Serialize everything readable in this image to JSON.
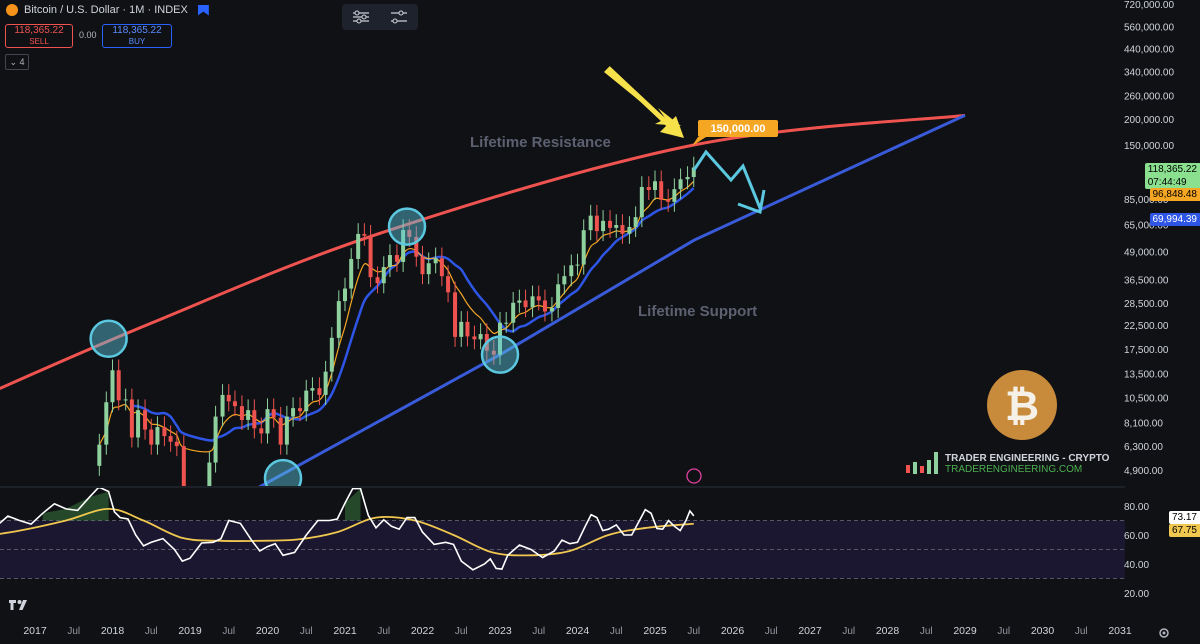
{
  "header": {
    "symbol": "Bitcoin / U.S. Dollar · 1M · INDEX",
    "sell_price": "118,365.22",
    "sell_label": "SELL",
    "spread": "0.00",
    "buy_price": "118,365.22",
    "buy_label": "BUY",
    "indicators_count": "4"
  },
  "colors": {
    "up": "#26a69a",
    "up_candle": "#8fd19e",
    "down": "#ef5350",
    "resistance": "#ef5350",
    "support": "#3a5bd9",
    "ema_orange": "#f5a623",
    "sma_blue": "#2e55e6",
    "circle": "#5bc8e0",
    "rsi_line": "#ffffff",
    "rsi_ma": "#f0c850",
    "arrow_yellow": "#f7e14b",
    "arrow_blue": "#5bc8e0"
  },
  "annotations": {
    "resistance_label": "Lifetime Resistance",
    "support_label": "Lifetime Support",
    "target_label": "150,000.00",
    "brand_name": "TRADER ENGINEERING - CRYPTO",
    "brand_url": "TRADERENGINEERING.COM"
  },
  "price_badges": {
    "last_price": "118,365.22",
    "countdown": "07:44:49",
    "ema": "96,848.48",
    "sma": "69,994.39",
    "rsi": "73.17",
    "rsi_ma": "67.75"
  },
  "chart_data": [
    {
      "type": "candlestick",
      "title": "Bitcoin / U.S. Dollar · 1M · INDEX",
      "y_scale": "log",
      "y_ticks": [
        "720,000.00",
        "560,000.00",
        "440,000.00",
        "340,000.00",
        "260,000.00",
        "200,000.00",
        "150,000.00",
        "85,000.00",
        "65,000.00",
        "49,000.00",
        "36,500.00",
        "28,500.00",
        "22,500.00",
        "17,500.00",
        "13,500.00",
        "10,500.00",
        "8,100.00",
        "6,300.00",
        "4,900.00"
      ],
      "y_tick_values": [
        720000,
        560000,
        440000,
        340000,
        260000,
        200000,
        150000,
        85000,
        65000,
        49000,
        36500,
        28500,
        22500,
        17500,
        13500,
        10500,
        8100,
        6300,
        4900
      ],
      "x_ticks": [
        "2017",
        "Jul",
        "2018",
        "Jul",
        "2019",
        "Jul",
        "2020",
        "Jul",
        "2021",
        "Jul",
        "2022",
        "Jul",
        "2023",
        "Jul",
        "2024",
        "Jul",
        "2025",
        "Jul",
        "2026",
        "Jul",
        "2027",
        "Jul",
        "2028",
        "Jul",
        "2029",
        "Jul",
        "2030",
        "Jul",
        "2031"
      ],
      "x_tick_dates": [
        2017.0,
        2017.5,
        2018.0,
        2018.5,
        2019.0,
        2019.5,
        2020.0,
        2020.5,
        2021.0,
        2021.5,
        2022.0,
        2022.5,
        2023.0,
        2023.5,
        2024.0,
        2024.5,
        2025.0,
        2025.5,
        2026.0,
        2026.5,
        2027.0,
        2027.5,
        2028.0,
        2028.5,
        2029.0,
        2029.5,
        2030.0,
        2030.5,
        2031.0
      ],
      "candles_close": [
        [
          2017.83,
          6400
        ],
        [
          2017.92,
          10000
        ],
        [
          2018.0,
          14000
        ],
        [
          2018.08,
          10200
        ],
        [
          2018.17,
          10300
        ],
        [
          2018.25,
          6900
        ],
        [
          2018.33,
          9200
        ],
        [
          2018.42,
          7500
        ],
        [
          2018.5,
          6400
        ],
        [
          2018.58,
          7700
        ],
        [
          2018.67,
          7000
        ],
        [
          2018.75,
          6600
        ],
        [
          2018.83,
          6300
        ],
        [
          2018.92,
          4000
        ],
        [
          2019.25,
          5300
        ],
        [
          2019.33,
          8600
        ],
        [
          2019.42,
          10800
        ],
        [
          2019.5,
          10100
        ],
        [
          2019.58,
          9600
        ],
        [
          2019.67,
          8300
        ],
        [
          2019.75,
          9200
        ],
        [
          2019.83,
          7600
        ],
        [
          2019.92,
          7200
        ],
        [
          2020.0,
          9300
        ],
        [
          2020.08,
          8500
        ],
        [
          2020.17,
          6400
        ],
        [
          2020.25,
          8600
        ],
        [
          2020.33,
          9400
        ],
        [
          2020.42,
          9100
        ],
        [
          2020.5,
          11300
        ],
        [
          2020.58,
          11600
        ],
        [
          2020.67,
          10800
        ],
        [
          2020.75,
          13800
        ],
        [
          2020.83,
          19700
        ],
        [
          2020.92,
          29000
        ],
        [
          2021.0,
          33100
        ],
        [
          2021.08,
          45200
        ],
        [
          2021.17,
          58800
        ],
        [
          2021.25,
          57700
        ],
        [
          2021.33,
          37300
        ],
        [
          2021.42,
          35000
        ],
        [
          2021.5,
          41500
        ],
        [
          2021.58,
          47100
        ],
        [
          2021.67,
          43800
        ],
        [
          2021.75,
          61300
        ],
        [
          2021.83,
          57000
        ],
        [
          2021.92,
          46300
        ],
        [
          2022.0,
          38500
        ],
        [
          2022.08,
          43200
        ],
        [
          2022.17,
          45500
        ],
        [
          2022.25,
          37700
        ],
        [
          2022.33,
          31800
        ],
        [
          2022.42,
          19900
        ],
        [
          2022.5,
          23300
        ],
        [
          2022.58,
          20000
        ],
        [
          2022.67,
          19400
        ],
        [
          2022.75,
          20500
        ],
        [
          2022.83,
          17200
        ],
        [
          2022.92,
          16500
        ],
        [
          2023.0,
          23100
        ],
        [
          2023.08,
          23100
        ],
        [
          2023.17,
          28500
        ],
        [
          2023.25,
          29200
        ],
        [
          2023.33,
          27200
        ],
        [
          2023.42,
          30500
        ],
        [
          2023.5,
          29200
        ],
        [
          2023.58,
          26000
        ],
        [
          2023.67,
          27000
        ],
        [
          2023.75,
          34600
        ],
        [
          2023.83,
          37700
        ],
        [
          2023.92,
          42300
        ],
        [
          2024.0,
          42600
        ],
        [
          2024.08,
          61200
        ],
        [
          2024.17,
          71300
        ],
        [
          2024.25,
          60600
        ],
        [
          2024.33,
          67500
        ],
        [
          2024.42,
          62700
        ],
        [
          2024.5,
          64600
        ],
        [
          2024.58,
          58900
        ],
        [
          2024.67,
          63300
        ],
        [
          2024.75,
          70200
        ],
        [
          2024.83,
          96400
        ],
        [
          2024.92,
          93400
        ],
        [
          2025.0,
          102400
        ],
        [
          2025.08,
          84300
        ],
        [
          2025.17,
          82500
        ],
        [
          2025.25,
          94200
        ],
        [
          2025.33,
          104600
        ],
        [
          2025.42,
          107100
        ],
        [
          2025.5,
          118365
        ]
      ],
      "lifetime_resistance": [
        [
          2016.0,
          9500
        ],
        [
          2018.5,
          23000
        ],
        [
          2021.5,
          60000
        ],
        [
          2025.5,
          150000
        ],
        [
          2029.0,
          205000
        ]
      ],
      "lifetime_support": [
        [
          2019.2,
          3000
        ],
        [
          2023.0,
          16500
        ],
        [
          2025.5,
          55000
        ],
        [
          2029.0,
          205000
        ]
      ],
      "ema_last": 96848.48,
      "sma_last": 69994.39,
      "target": 150000
    },
    {
      "type": "line",
      "title": "RSI",
      "y_ticks": [
        "80.00",
        "60.00",
        "40.00",
        "20.00"
      ],
      "y_tick_values": [
        80,
        60,
        40,
        20
      ],
      "bands": [
        70,
        50,
        30
      ],
      "rsi_last": 73.17,
      "rsi_ma_last": 67.75,
      "series": [
        {
          "values": [
            [
              2016.2,
              62
            ],
            [
              2016.5,
              66
            ],
            [
              2016.8,
              70
            ],
            [
              2017.1,
              75
            ],
            [
              2017.4,
              78
            ],
            [
              2017.7,
              86
            ],
            [
              2017.95,
              90
            ],
            [
              2018.1,
              72
            ],
            [
              2018.3,
              60
            ],
            [
              2018.5,
              55
            ],
            [
              2018.8,
              50
            ],
            [
              2019.0,
              44
            ],
            [
              2019.3,
              55
            ],
            [
              2019.5,
              70
            ],
            [
              2019.8,
              56
            ],
            [
              2020.0,
              52
            ],
            [
              2020.2,
              46
            ],
            [
              2020.5,
              60
            ],
            [
              2020.8,
              70
            ],
            [
              2021.0,
              82
            ],
            [
              2021.2,
              92
            ],
            [
              2021.4,
              65
            ],
            [
              2021.6,
              66
            ],
            [
              2021.8,
              72
            ],
            [
              2022.0,
              62
            ],
            [
              2022.3,
              55
            ],
            [
              2022.5,
              42
            ],
            [
              2022.8,
              40
            ],
            [
              2022.95,
              37
            ],
            [
              2023.1,
              46
            ],
            [
              2023.4,
              50
            ],
            [
              2023.7,
              49
            ],
            [
              2023.9,
              54
            ],
            [
              2024.1,
              66
            ],
            [
              2024.25,
              72
            ],
            [
              2024.4,
              64
            ],
            [
              2024.6,
              60
            ],
            [
              2024.8,
              70
            ],
            [
              2024.95,
              75
            ],
            [
              2025.1,
              64
            ],
            [
              2025.25,
              66
            ],
            [
              2025.4,
              70
            ],
            [
              2025.5,
              73.17
            ]
          ]
        },
        {
          "values": [
            [
              2016.2,
              58
            ],
            [
              2016.8,
              63
            ],
            [
              2017.4,
              70
            ],
            [
              2017.95,
              78
            ],
            [
              2018.4,
              70
            ],
            [
              2018.9,
              58
            ],
            [
              2019.4,
              56
            ],
            [
              2019.9,
              56
            ],
            [
              2020.4,
              57
            ],
            [
              2020.9,
              62
            ],
            [
              2021.4,
              72
            ],
            [
              2021.9,
              70
            ],
            [
              2022.4,
              60
            ],
            [
              2022.9,
              48
            ],
            [
              2023.4,
              46
            ],
            [
              2023.9,
              49
            ],
            [
              2024.4,
              60
            ],
            [
              2024.9,
              65
            ],
            [
              2025.5,
              67.75
            ]
          ]
        }
      ]
    }
  ]
}
